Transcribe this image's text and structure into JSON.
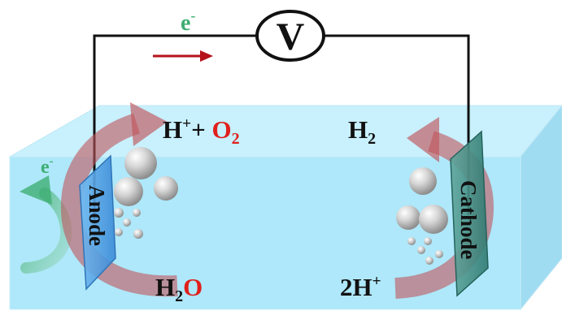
{
  "circuit": {
    "meter_symbol": "V",
    "electron_label_top": "e",
    "electron_label_left": "e",
    "electron_superscript": "-"
  },
  "anode": {
    "label": "Anode",
    "products": {
      "h_symbol": "H",
      "h_charge": "+",
      "plus": "+ ",
      "o_symbol": "O",
      "o_subscript": "2"
    },
    "reactant": {
      "h_symbol": "H",
      "h_subscript": "2",
      "o_symbol": "O"
    }
  },
  "cathode": {
    "label": "Cathode",
    "product": {
      "symbol": "H",
      "subscript": "2"
    },
    "reactant": {
      "coefficient": "2H",
      "charge": "+"
    }
  },
  "colors": {
    "electron_green": "#3fae73",
    "electron_arrow_red": "#b5121b",
    "oxygen_red": "#e0201b",
    "text_black": "#111111",
    "electrolyte_front": "#aee8fa",
    "electrolyte_top": "#c8f0fd",
    "electrolyte_side": "#9fdcf2",
    "anode_plate": "#4a9fe3",
    "cathode_plate": "#3f8f86",
    "cycle_arrow": "#c0555b"
  }
}
